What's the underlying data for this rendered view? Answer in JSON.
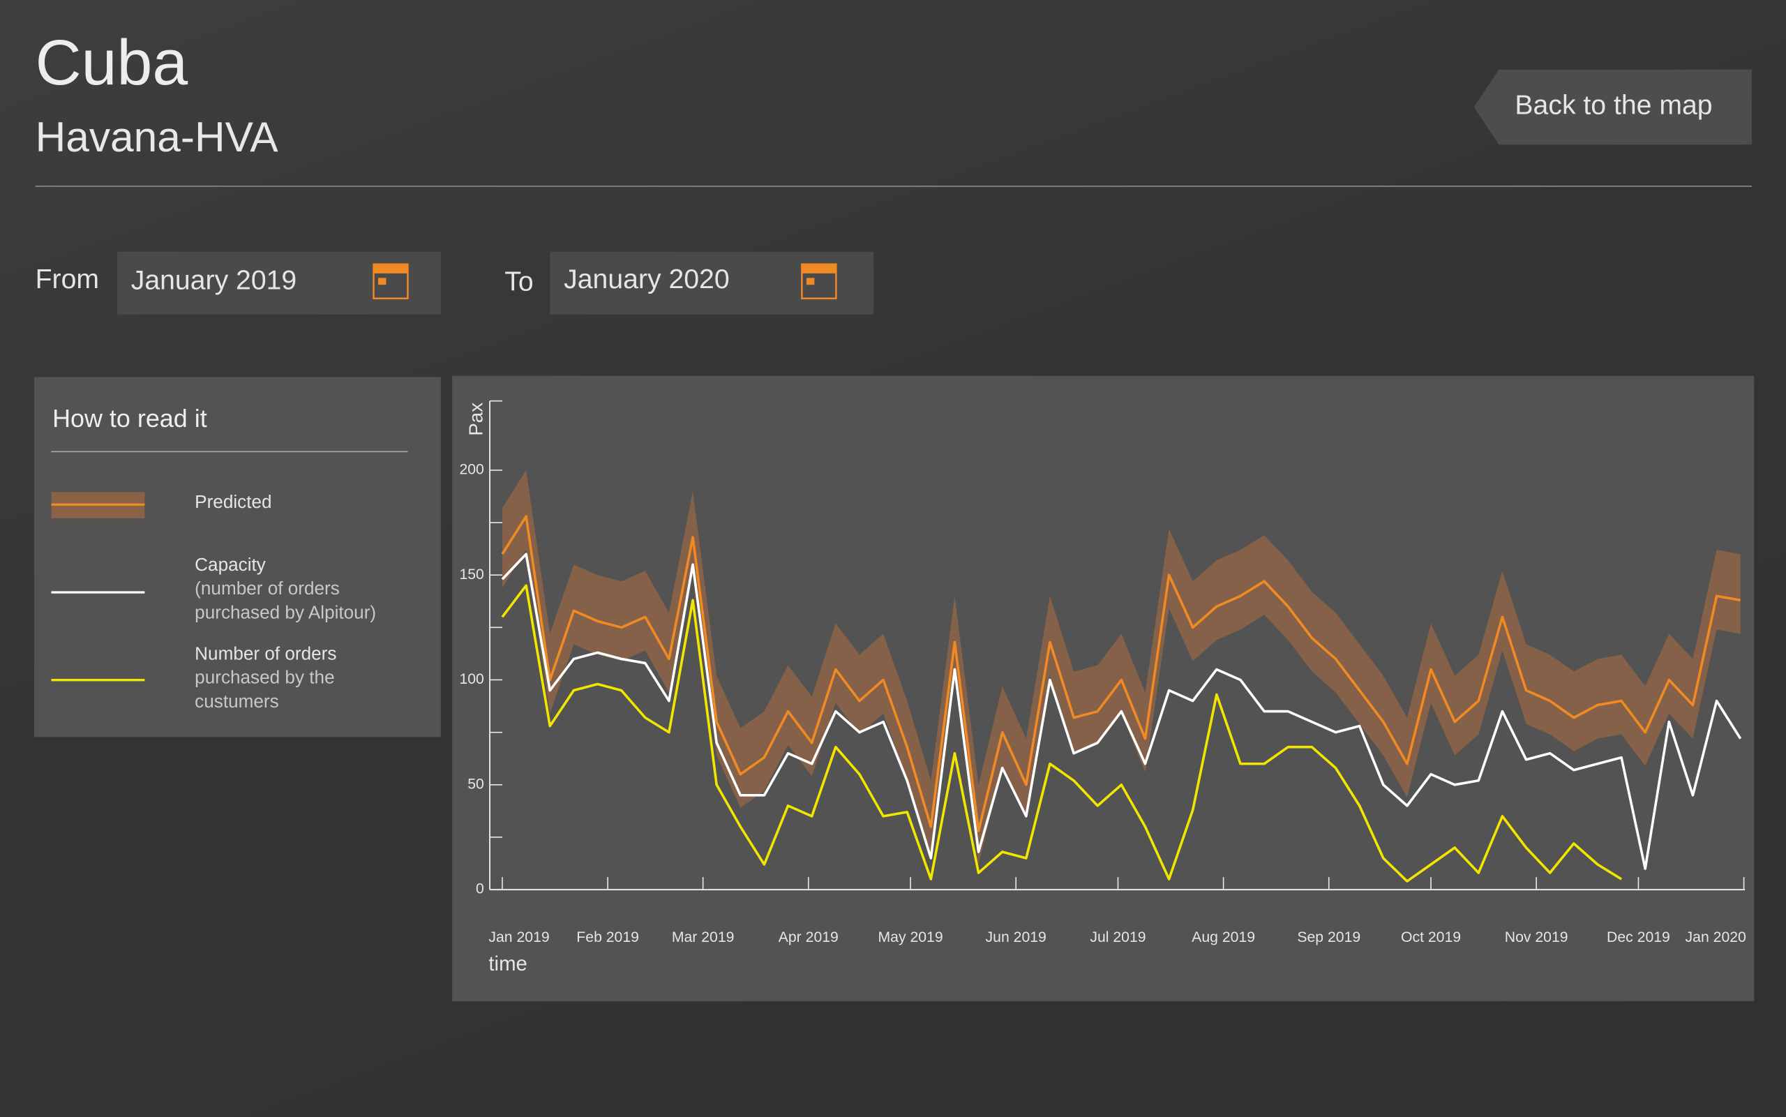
{
  "header": {
    "title": "Cuba",
    "subtitle": "Havana-HVA",
    "back_button": "Back to the map"
  },
  "filters": {
    "from_label": "From",
    "from_value": "January 2019",
    "to_label": "To",
    "to_value": "January 2020"
  },
  "legend": {
    "title": "How to read it"
  },
  "chart_data": {
    "type": "line",
    "ylabel": "Pax",
    "xlabel": "time",
    "xlim": [
      0,
      365
    ],
    "ylim": [
      0,
      233
    ],
    "xticks": [
      {
        "value": 0,
        "label": "Jan 2019"
      },
      {
        "value": 31,
        "label": "Feb 2019"
      },
      {
        "value": 59,
        "label": "Mar 2019"
      },
      {
        "value": 90,
        "label": "Apr 2019"
      },
      {
        "value": 120,
        "label": "May 2019"
      },
      {
        "value": 151,
        "label": "Jun 2019"
      },
      {
        "value": 181,
        "label": "Jul 2019"
      },
      {
        "value": 212,
        "label": "Aug 2019"
      },
      {
        "value": 243,
        "label": "Sep 2019"
      },
      {
        "value": 273,
        "label": "Oct 2019"
      },
      {
        "value": 304,
        "label": "Nov 2019"
      },
      {
        "value": 334,
        "label": "Dec 2019"
      },
      {
        "value": 365,
        "label": "Jan 2020"
      }
    ],
    "yticks": [
      0,
      50,
      100,
      150,
      200
    ],
    "yticks_minor": [
      25,
      75,
      125,
      175
    ],
    "x": [
      0,
      7,
      14,
      21,
      28,
      35,
      42,
      49,
      56,
      63,
      70,
      77,
      84,
      91,
      98,
      105,
      112,
      119,
      126,
      133,
      140,
      147,
      154,
      161,
      168,
      175,
      182,
      189,
      196,
      203,
      210,
      217,
      224,
      231,
      238,
      245,
      252,
      259,
      266,
      273,
      280,
      287,
      294,
      301,
      308,
      315,
      322,
      329,
      336,
      343,
      350,
      357,
      364
    ],
    "band": {
      "color": "#8a6347",
      "upper": [
        182,
        200,
        122,
        155,
        150,
        147,
        152,
        132,
        190,
        102,
        77,
        85,
        107,
        92,
        127,
        112,
        122,
        90,
        52,
        140,
        50,
        97,
        72,
        140,
        104,
        107,
        122,
        94,
        172,
        147,
        157,
        162,
        169,
        157,
        142,
        132,
        117,
        102,
        82,
        127,
        102,
        112,
        152,
        117,
        112,
        104,
        110,
        112,
        97,
        122,
        110,
        162,
        160
      ],
      "lower": [
        144,
        162,
        84,
        117,
        112,
        109,
        114,
        94,
        152,
        64,
        39,
        47,
        69,
        54,
        89,
        74,
        84,
        52,
        14,
        102,
        12,
        59,
        34,
        102,
        66,
        69,
        84,
        56,
        134,
        109,
        119,
        124,
        131,
        119,
        104,
        94,
        79,
        64,
        44,
        89,
        64,
        74,
        114,
        79,
        74,
        66,
        72,
        74,
        59,
        84,
        72,
        124,
        122
      ]
    },
    "series": [
      {
        "name": "Predicted",
        "color": "#f08a24",
        "values": [
          160,
          178,
          100,
          133,
          128,
          125,
          130,
          110,
          168,
          80,
          55,
          63,
          85,
          70,
          105,
          90,
          100,
          68,
          30,
          118,
          28,
          75,
          50,
          118,
          82,
          85,
          100,
          72,
          150,
          125,
          135,
          140,
          147,
          135,
          120,
          110,
          95,
          80,
          60,
          105,
          80,
          90,
          130,
          95,
          90,
          82,
          88,
          90,
          75,
          100,
          88,
          140,
          138
        ]
      },
      {
        "name": "Capacity",
        "description": "(number of orders purchased by Alpitour)",
        "color": "#ffffff",
        "values": [
          148,
          160,
          95,
          110,
          113,
          110,
          108,
          90,
          155,
          70,
          45,
          45,
          65,
          60,
          85,
          75,
          80,
          52,
          15,
          105,
          18,
          58,
          35,
          100,
          65,
          70,
          85,
          60,
          95,
          90,
          105,
          100,
          85,
          85,
          80,
          75,
          78,
          50,
          40,
          55,
          50,
          52,
          85,
          62,
          65,
          57,
          60,
          63,
          10,
          80,
          45,
          90,
          72
        ]
      },
      {
        "name": "Number of orders",
        "description": "purchased by the custumers",
        "color": "#f2e600",
        "values": [
          130,
          145,
          78,
          95,
          98,
          95,
          82,
          75,
          138,
          50,
          30,
          12,
          40,
          35,
          68,
          55,
          35,
          37,
          5,
          65,
          8,
          18,
          15,
          60,
          52,
          40,
          50,
          30,
          5,
          38,
          93,
          60,
          60,
          68,
          68,
          58,
          40,
          15,
          4,
          12,
          20,
          8,
          35,
          20,
          8,
          22,
          12,
          5,
          null,
          null,
          null,
          null,
          null
        ]
      }
    ]
  }
}
